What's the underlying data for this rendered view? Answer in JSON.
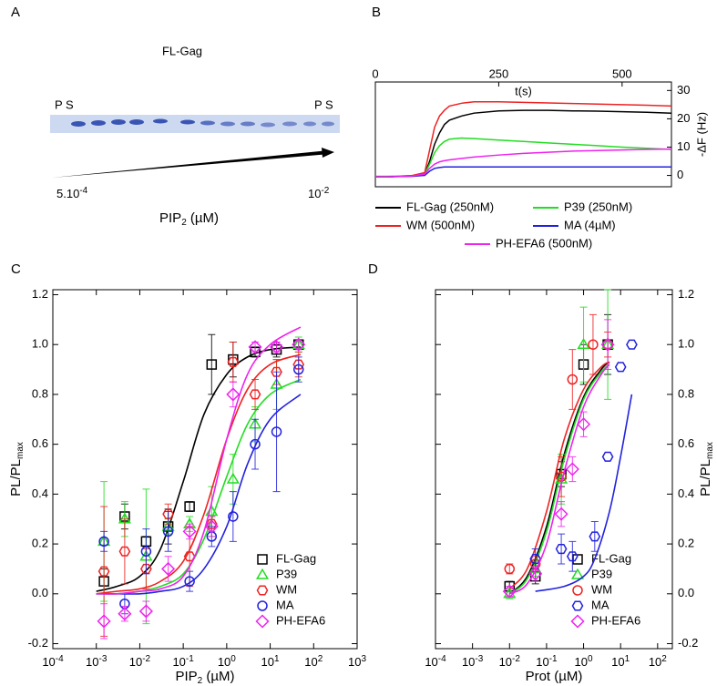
{
  "panel_labels": [
    "A",
    "B",
    "C",
    "D"
  ],
  "gel": {
    "title": "FL-Gag",
    "lane_left": "P S",
    "lane_right": "P S",
    "range_start": [
      "5.10",
      "-4"
    ],
    "range_end": [
      "10",
      "-2"
    ],
    "axis_label": [
      "PIP",
      "2",
      " (µM)"
    ]
  },
  "chart_data": [
    {
      "type": "line",
      "x_label": "t(s)",
      "y_label": "-ΔF (Hz)",
      "x_axis_side": "top",
      "y_axis_side": "right",
      "xlim": [
        0,
        600
      ],
      "xticks": [
        0,
        250,
        500
      ],
      "ylim": [
        -4,
        33
      ],
      "yticks": [
        0,
        10,
        20,
        30
      ],
      "x": [
        0,
        25,
        50,
        75,
        100,
        110,
        120,
        130,
        140,
        150,
        175,
        200,
        250,
        300,
        350,
        400,
        450,
        500,
        550,
        600
      ],
      "series": [
        {
          "name": "FL-Gag (250nM)",
          "color": "#000000",
          "values": [
            -0.5,
            -0.5,
            -0.3,
            -0.2,
            0.5,
            5,
            11,
            15,
            18,
            19.5,
            21,
            22,
            22.8,
            23,
            23,
            22.8,
            22.7,
            22.5,
            22.3,
            22
          ]
        },
        {
          "name": "P39 (250nM)",
          "color": "#22dd22",
          "values": [
            -0.3,
            -0.3,
            -0.2,
            0,
            0.5,
            4,
            8,
            10.5,
            12,
            12.8,
            13.2,
            13,
            12.5,
            12,
            11.5,
            11,
            10.5,
            10,
            9.6,
            9.2
          ]
        },
        {
          "name": "WM (500nM)",
          "color": "#ee2222",
          "values": [
            -0.5,
            -0.5,
            -0.3,
            0,
            1,
            9,
            17,
            21,
            23,
            24.5,
            25.5,
            26,
            26,
            25.8,
            25.6,
            25.4,
            25.2,
            25,
            24.8,
            24.5
          ]
        },
        {
          "name": "MA (4µM)",
          "color": "#2222dd",
          "values": [
            -0.5,
            -0.5,
            -0.4,
            -0.3,
            0,
            1.5,
            2.5,
            2.8,
            3,
            3,
            3,
            3,
            3,
            3,
            3,
            3,
            3,
            3,
            3,
            3
          ]
        },
        {
          "name": "PH-EFA6 (500nM)",
          "color": "#ee22ee",
          "values": [
            -0.5,
            -0.5,
            -0.4,
            -0.2,
            0.5,
            2.5,
            4,
            4.8,
            5.2,
            5.5,
            6,
            6.5,
            7.2,
            7.8,
            8.2,
            8.6,
            8.8,
            9,
            9.2,
            9.3
          ]
        }
      ]
    },
    {
      "type": "scatter",
      "x_label": [
        "PIP",
        "2",
        " (µM)"
      ],
      "y_label": [
        "PL/PL",
        "max"
      ],
      "y_axis_side": "left",
      "legend": "lower right",
      "xscale": "log",
      "xlim": [
        0.0001,
        1000
      ],
      "xticks": [
        {
          "value": 0.0001,
          "label": "10-4"
        },
        {
          "value": 0.001,
          "label": "10-3"
        },
        {
          "value": 0.01,
          "label": "10-2"
        },
        {
          "value": 0.1,
          "label": "10-1"
        },
        {
          "value": 1,
          "label": "100"
        },
        {
          "value": 10,
          "label": "101"
        },
        {
          "value": 100,
          "label": "102"
        },
        {
          "value": 1000,
          "label": "103"
        }
      ],
      "ylim": [
        -0.22,
        1.22
      ],
      "yticks": [
        -0.2,
        {
          "value": 0,
          "label": "0.0"
        },
        0.2,
        0.4,
        0.6,
        0.8,
        {
          "value": 1,
          "label": "1.0"
        },
        1.2
      ],
      "series": [
        {
          "name": "FL-Gag",
          "color": "#000000",
          "marker": "square",
          "x": [
            0.0015,
            0.0045,
            0.014,
            0.045,
            0.14,
            0.45,
            1.4,
            4.5,
            14,
            45
          ],
          "values": [
            0.05,
            0.31,
            0.21,
            0.27,
            0.35,
            0.92,
            0.94,
            0.97,
            0.98,
            1.0
          ],
          "errors": [
            0.05,
            0.05,
            0.02,
            0.07,
            0.02,
            0.12,
            0.07,
            0.02,
            0.03,
            0.02
          ],
          "fit": {
            "x": [
              0.001,
              0.003,
              0.01,
              0.03,
              0.1,
              0.3,
              1,
              3,
              10,
              50
            ],
            "values": [
              0.01,
              0.03,
              0.07,
              0.18,
              0.45,
              0.72,
              0.88,
              0.95,
              0.98,
              0.99
            ]
          }
        },
        {
          "name": "P39",
          "color": "#22dd22",
          "marker": "triangle",
          "x": [
            0.0015,
            0.0045,
            0.014,
            0.045,
            0.14,
            0.45,
            1.4,
            4.5,
            14,
            45
          ],
          "values": [
            0.21,
            0.3,
            0.15,
            0.27,
            0.28,
            0.33,
            0.46,
            0.68,
            0.84,
            1.0
          ],
          "errors": [
            0.24,
            0.07,
            0.27,
            0.03,
            0.03,
            0.1,
            0.1,
            0.07,
            0.1,
            0.03
          ],
          "fit": {
            "x": [
              0.001,
              0.003,
              0.01,
              0.03,
              0.1,
              0.3,
              1,
              3,
              10,
              50
            ],
            "values": [
              0,
              0,
              0.01,
              0.03,
              0.08,
              0.22,
              0.47,
              0.68,
              0.8,
              0.86
            ]
          }
        },
        {
          "name": "WM",
          "color": "#ee2222",
          "marker": "hexagon",
          "x": [
            0.0015,
            0.0045,
            0.014,
            0.045,
            0.14,
            0.45,
            1.4,
            4.5,
            14,
            45
          ],
          "values": [
            0.09,
            0.17,
            0.1,
            0.32,
            0.15,
            0.28,
            0.93,
            0.8,
            0.89,
            0.92
          ],
          "errors": [
            0.26,
            0.13,
            0.08,
            0.04,
            0.12,
            0.03,
            0.08,
            0.06,
            0.05,
            0.05
          ],
          "fit": {
            "x": [
              0.001,
              0.003,
              0.01,
              0.03,
              0.1,
              0.3,
              1,
              3,
              10,
              50
            ],
            "values": [
              0,
              0.01,
              0.02,
              0.05,
              0.13,
              0.32,
              0.62,
              0.82,
              0.92,
              0.96
            ]
          }
        },
        {
          "name": "MA",
          "color": "#2222dd",
          "marker": "circle",
          "x": [
            0.0015,
            0.0045,
            0.014,
            0.045,
            0.14,
            0.45,
            1.4,
            4.5,
            14,
            45
          ],
          "values": [
            0.21,
            -0.04,
            0.17,
            0.25,
            0.05,
            0.23,
            0.31,
            0.6,
            0.65,
            0.9
          ],
          "errors": [
            0.04,
            0.04,
            0.09,
            0.08,
            0.04,
            0.04,
            0.1,
            0.1,
            0.24,
            0.05
          ],
          "fit": {
            "x": [
              0.001,
              0.003,
              0.01,
              0.03,
              0.1,
              0.3,
              1,
              3,
              10,
              50
            ],
            "values": [
              0,
              0,
              0,
              0.01,
              0.03,
              0.1,
              0.27,
              0.52,
              0.7,
              0.8
            ]
          }
        },
        {
          "name": "PH-EFA6",
          "color": "#ee22ee",
          "marker": "diamond",
          "x": [
            0.0015,
            0.0045,
            0.014,
            0.045,
            0.14,
            0.45,
            1.4,
            4.5,
            14,
            45
          ],
          "values": [
            -0.11,
            -0.08,
            -0.07,
            0.1,
            0.25,
            0.27,
            0.8,
            0.99,
            0.99,
            1.0
          ],
          "errors": [
            0.07,
            0.03,
            0.04,
            0.05,
            0.03,
            0.04,
            0.05,
            0.02,
            0.02,
            0.02
          ],
          "fit": {
            "x": [
              0.001,
              0.003,
              0.01,
              0.03,
              0.1,
              0.3,
              1,
              3,
              10,
              50
            ],
            "values": [
              0,
              0,
              0.01,
              0.02,
              0.07,
              0.25,
              0.62,
              0.88,
              1.0,
              1.07
            ]
          }
        }
      ]
    },
    {
      "type": "scatter",
      "x_label": [
        "Prot (µM)"
      ],
      "y_label": [
        "PL/PL",
        "max"
      ],
      "y_axis_side": "right",
      "legend": "lower right",
      "xscale": "log",
      "xlim": [
        0.0001,
        250
      ],
      "xticks": [
        {
          "value": 0.0001,
          "label": "10-4"
        },
        {
          "value": 0.001,
          "label": "10-3"
        },
        {
          "value": 0.01,
          "label": "10-2"
        },
        {
          "value": 0.1,
          "label": "10-1"
        },
        {
          "value": 1,
          "label": "100"
        },
        {
          "value": 10,
          "label": "101"
        },
        {
          "value": 100,
          "label": "102"
        }
      ],
      "ylim": [
        -0.22,
        1.22
      ],
      "yticks": [
        -0.2,
        {
          "value": 0,
          "label": "0.0"
        },
        0.2,
        0.4,
        0.6,
        0.8,
        {
          "value": 1,
          "label": "1.0"
        },
        1.2
      ],
      "series": [
        {
          "name": "FL-Gag",
          "color": "#000000",
          "marker": "square",
          "x": [
            0.01,
            0.05,
            0.25,
            1,
            4.5
          ],
          "values": [
            0.03,
            0.07,
            0.48,
            0.92,
            1.0
          ],
          "errors": [
            0.02,
            0.03,
            0.05,
            0.08,
            0.12
          ],
          "fit": {
            "x": [
              0.01,
              0.03,
              0.1,
              0.3,
              1,
              3,
              5
            ],
            "values": [
              0,
              0.07,
              0.27,
              0.56,
              0.79,
              0.9,
              0.93
            ]
          }
        },
        {
          "name": "P39",
          "color": "#22dd22",
          "marker": "triangle",
          "x": [
            0.01,
            0.05,
            0.25,
            1,
            4.5
          ],
          "values": [
            0.0,
            0.1,
            0.46,
            1.0,
            1.0
          ],
          "errors": [
            0.02,
            0.03,
            0.1,
            0.15,
            0.22
          ],
          "fit": {
            "x": [
              0.01,
              0.03,
              0.1,
              0.3,
              1,
              3,
              5
            ],
            "values": [
              0,
              0.06,
              0.25,
              0.54,
              0.78,
              0.89,
              0.92
            ]
          }
        },
        {
          "name": "WM",
          "color": "#ee2222",
          "marker": "circle",
          "x": [
            0.01,
            0.05,
            0.25,
            0.5,
            1.8,
            4.5
          ],
          "values": [
            0.1,
            0.12,
            0.47,
            0.86,
            1.0,
            1.0
          ],
          "errors": [
            0.02,
            0.03,
            0.08,
            0.12,
            0.12,
            0.05
          ],
          "fit": {
            "x": [
              0.01,
              0.03,
              0.1,
              0.3,
              1,
              3,
              5
            ],
            "values": [
              0.02,
              0.1,
              0.33,
              0.62,
              0.82,
              0.91,
              0.93
            ]
          }
        },
        {
          "name": "MA",
          "color": "#2222dd",
          "marker": "hexagon",
          "x": [
            0.05,
            0.25,
            0.5,
            2,
            4.5,
            10,
            20
          ],
          "values": [
            0.14,
            0.18,
            0.15,
            0.23,
            0.55,
            0.91,
            1.0
          ],
          "errors": [
            0.04,
            0.06,
            0.06,
            0.06,
            null,
            null,
            null
          ],
          "fit": {
            "x": [
              0.05,
              0.3,
              1,
              2,
              5,
              10,
              20
            ],
            "values": [
              0.01,
              0.03,
              0.07,
              0.14,
              0.33,
              0.55,
              0.8
            ]
          }
        },
        {
          "name": "PH-EFA6",
          "color": "#ee22ee",
          "marker": "diamond",
          "x": [
            0.01,
            0.05,
            0.25,
            0.5,
            1,
            4.5
          ],
          "values": [
            0.01,
            0.08,
            0.32,
            0.5,
            0.68,
            1.0
          ],
          "errors": [
            0.02,
            0.03,
            0.05,
            0.05,
            0.05,
            0.1
          ],
          "fit": {
            "x": [
              0.01,
              0.03,
              0.1,
              0.3,
              1,
              3,
              5
            ],
            "values": [
              0,
              0.04,
              0.2,
              0.49,
              0.75,
              0.88,
              0.92
            ]
          }
        }
      ]
    }
  ]
}
